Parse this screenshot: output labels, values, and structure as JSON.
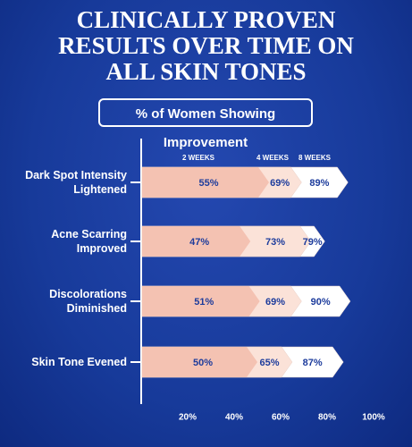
{
  "chart_data": {
    "type": "bar",
    "orientation": "horizontal",
    "title": "CLINICALLY PROVEN RESULTS OVER TIME ON ALL SKIN TONES",
    "subtitle": "% of Women Showing Improvement",
    "categories": [
      "Dark Spot Intensity Lightened",
      "Acne Scarring Improved",
      "Discolorations Diminished",
      "Skin Tone Evened"
    ],
    "series": [
      {
        "name": "2 WEEKS",
        "color": "#f4c2b2",
        "values": [
          55,
          47,
          51,
          50
        ],
        "value_labels": [
          "55%",
          "47%",
          "51%",
          "50%"
        ]
      },
      {
        "name": "4 WEEKS",
        "color": "#fbe2d8",
        "values": [
          69,
          73,
          69,
          65
        ],
        "value_labels": [
          "69%",
          "73%",
          "69%",
          "65%"
        ]
      },
      {
        "name": "8 WEEKS",
        "color": "#ffffff",
        "values": [
          89,
          79,
          90,
          87
        ],
        "value_labels": [
          "89%",
          "79%",
          "90%",
          "87%"
        ]
      }
    ],
    "xlim": [
      0,
      100
    ],
    "xticks": [
      {
        "value": 20,
        "label": "20%"
      },
      {
        "value": 40,
        "label": "40%"
      },
      {
        "value": 60,
        "label": "60%"
      },
      {
        "value": 80,
        "label": "80%"
      },
      {
        "value": 100,
        "label": "100%"
      }
    ]
  }
}
